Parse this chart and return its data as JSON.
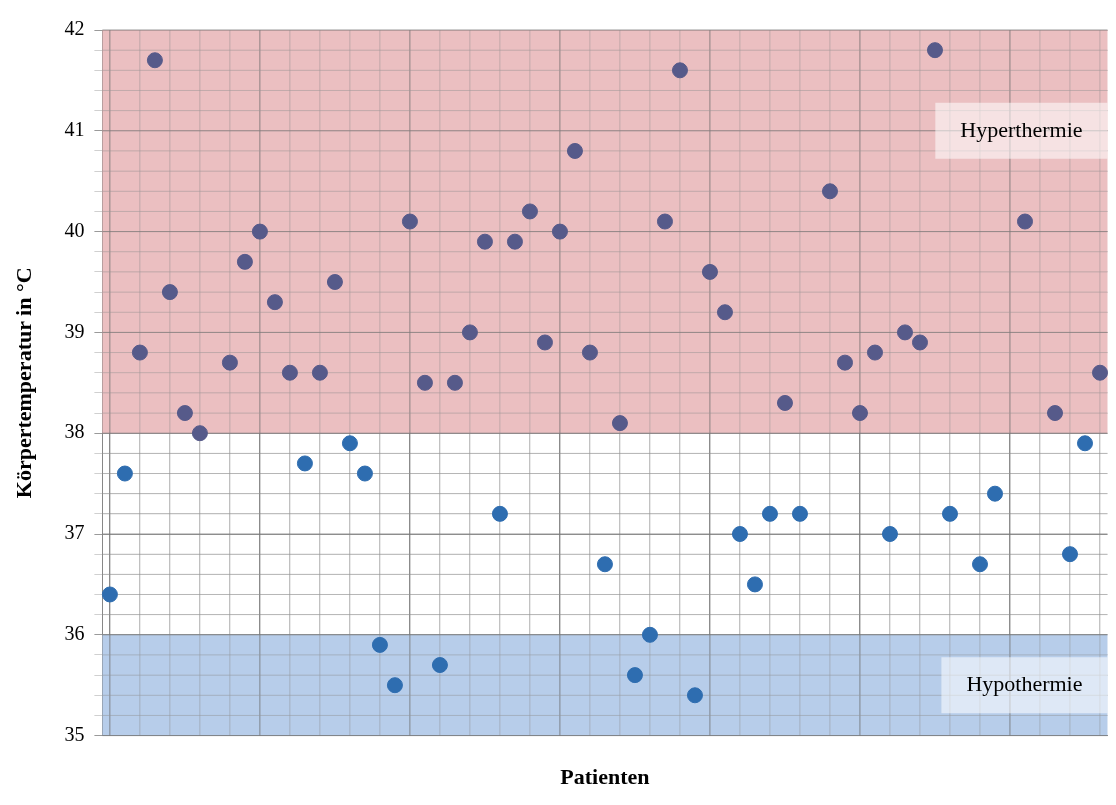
{
  "chart_data": {
    "type": "scatter",
    "xlabel": "Patienten",
    "ylabel": "Körpertemperatur in °C",
    "categories": [
      null,
      null,
      null,
      null,
      null,
      null,
      null,
      null,
      null,
      null,
      null,
      null,
      null,
      null,
      null,
      null,
      null,
      null,
      null,
      null,
      null,
      null,
      null,
      null,
      null,
      null,
      null,
      null,
      null,
      null,
      null,
      null,
      null,
      null,
      null,
      null,
      null,
      null,
      null,
      null,
      null,
      null,
      null,
      null,
      null,
      null,
      null,
      null,
      null,
      null,
      null,
      null,
      null,
      null,
      null,
      null,
      null,
      null,
      null,
      null,
      null,
      null,
      null,
      null,
      null,
      null,
      null
    ],
    "values": [
      36.4,
      37.6,
      38.8,
      41.7,
      39.4,
      38.2,
      38.0,
      null,
      38.7,
      39.7,
      40.0,
      39.3,
      38.6,
      37.7,
      38.6,
      39.5,
      37.9,
      37.6,
      35.9,
      35.5,
      40.1,
      38.5,
      35.7,
      38.5,
      39.0,
      39.9,
      37.2,
      39.9,
      40.2,
      38.9,
      40.0,
      40.8,
      38.8,
      36.7,
      38.1,
      35.6,
      36.0,
      40.1,
      41.6,
      35.4,
      39.6,
      39.2,
      37.0,
      36.5,
      37.2,
      38.3,
      37.2,
      null,
      40.4,
      38.7,
      38.2,
      38.8,
      37.0,
      39.0,
      38.9,
      41.8,
      37.2,
      null,
      36.7,
      37.4,
      null,
      40.1,
      null,
      38.2,
      36.8,
      37.9,
      38.6
    ],
    "colors": [
      "#2e6db0",
      "#2e6db0",
      "#565a8a",
      "#565a8a",
      "#565a8a",
      "#565a8a",
      "#565a8a",
      null,
      "#565a8a",
      "#565a8a",
      "#565a8a",
      "#565a8a",
      "#565a8a",
      "#2e6db0",
      "#565a8a",
      "#565a8a",
      "#2e6db0",
      "#2e6db0",
      "#2e6db0",
      "#2e6db0",
      "#565a8a",
      "#565a8a",
      "#2e6db0",
      "#565a8a",
      "#565a8a",
      "#565a8a",
      "#2e6db0",
      "#565a8a",
      "#565a8a",
      "#565a8a",
      "#565a8a",
      "#565a8a",
      "#565a8a",
      "#2e6db0",
      "#565a8a",
      "#2e6db0",
      "#2e6db0",
      "#565a8a",
      "#565a8a",
      "#2e6db0",
      "#565a8a",
      "#565a8a",
      "#2e6db0",
      "#2e6db0",
      "#2e6db0",
      "#565a8a",
      "#2e6db0",
      null,
      "#565a8a",
      "#565a8a",
      "#565a8a",
      "#565a8a",
      "#2e6db0",
      "#565a8a",
      "#565a8a",
      "#565a8a",
      "#2e6db0",
      null,
      "#2e6db0",
      "#2e6db0",
      null,
      "#565a8a",
      null,
      "#565a8a",
      "#2e6db0",
      "#2e6db0",
      "#565a8a"
    ],
    "ylim": [
      35,
      42
    ],
    "yticks": [
      35,
      {
        "value": 35.2,
        "label": null
      },
      {
        "value": 35.4,
        "label": null
      },
      {
        "value": 35.6,
        "label": null
      },
      {
        "value": 35.8,
        "label": null
      },
      36,
      {
        "value": 36.2,
        "label": null
      },
      {
        "value": 36.4,
        "label": null
      },
      {
        "value": 36.6,
        "label": null
      },
      {
        "value": 36.8,
        "label": null
      },
      37,
      {
        "value": 37.2,
        "label": null
      },
      {
        "value": 37.4,
        "label": null
      },
      {
        "value": 37.6,
        "label": null
      },
      {
        "value": 37.8,
        "label": null
      },
      38,
      {
        "value": 38.2,
        "label": null
      },
      {
        "value": 38.4,
        "label": null
      },
      {
        "value": 38.6,
        "label": null
      },
      {
        "value": 38.8,
        "label": null
      },
      39,
      {
        "value": 39.2,
        "label": null
      },
      {
        "value": 39.4,
        "label": null
      },
      {
        "value": 39.6,
        "label": null
      },
      {
        "value": 39.8,
        "label": null
      },
      40,
      {
        "value": 40.2,
        "label": null
      },
      {
        "value": 40.4,
        "label": null
      },
      {
        "value": 40.6,
        "label": null
      },
      {
        "value": 40.8,
        "label": null
      },
      41,
      {
        "value": 41.2,
        "label": null
      },
      {
        "value": 41.4,
        "label": null
      },
      {
        "value": 41.6,
        "label": null
      },
      {
        "value": 41.8,
        "label": null
      },
      42
    ],
    "bands": [
      {
        "axis": "y",
        "from": 38,
        "to": 42,
        "label": "Hyperthermie",
        "color": "#e8b4b6"
      },
      {
        "axis": "y",
        "from": 35,
        "to": 36,
        "label": "Hypothermie",
        "color": "#aac4e6"
      }
    ],
    "grid": true,
    "marker": "circle",
    "tick_labels": "y",
    "legend": false
  }
}
